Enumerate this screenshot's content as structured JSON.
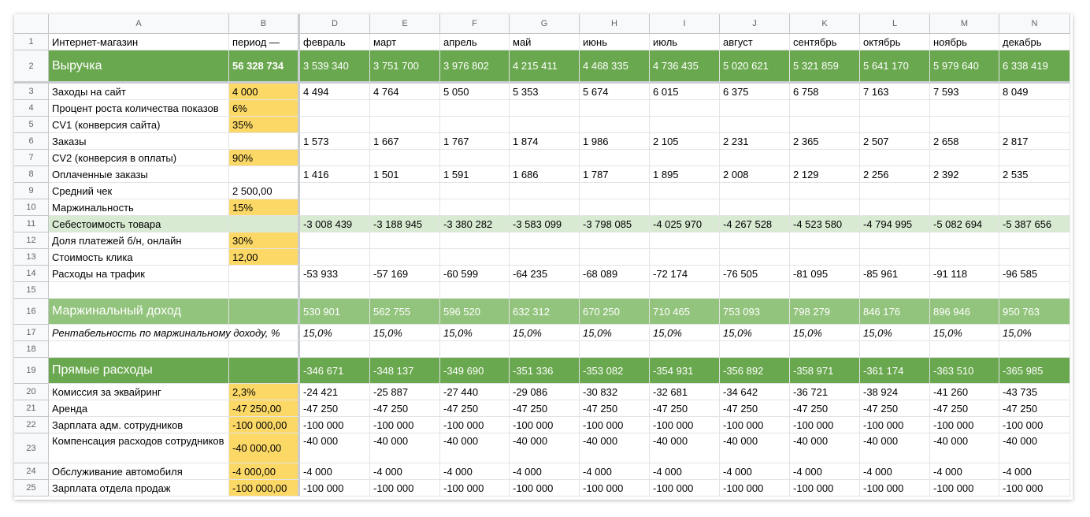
{
  "colors": {
    "yellow_input": "#fcd967",
    "green_dark": "#6aa84f",
    "green_mid": "#93c47d",
    "green_light": "#d9ead3"
  },
  "columns": [
    "A",
    "B",
    "D",
    "E",
    "F",
    "G",
    "H",
    "I",
    "J",
    "K",
    "L",
    "M",
    "N"
  ],
  "rows": [
    {
      "num": "1",
      "a": "Интернет-магазин",
      "b": "период —",
      "vals": [
        "февраль",
        "март",
        "апрель",
        "май",
        "июнь",
        "июль",
        "август",
        "сентябрь",
        "октябрь",
        "ноябрь",
        "декабрь"
      ]
    },
    {
      "num": "2",
      "a": "Выручка",
      "b": "56 328 734",
      "vals": [
        "3 539 340",
        "3 751 700",
        "3 976 802",
        "4 215 411",
        "4 468 335",
        "4 736 435",
        "5 020 621",
        "5 321 859",
        "5 641 170",
        "5 979 640",
        "6 338 419"
      ]
    },
    {
      "num": "3",
      "a": "Заходы на сайт",
      "b": "4 000",
      "vals": [
        "4 494",
        "4 764",
        "5 050",
        "5 353",
        "5 674",
        "6 015",
        "6 375",
        "6 758",
        "7 163",
        "7 593",
        "8 049"
      ]
    },
    {
      "num": "4",
      "a": "Процент роста количества показов",
      "b": "6%",
      "vals": [
        "",
        "",
        "",
        "",
        "",
        "",
        "",
        "",
        "",
        "",
        ""
      ]
    },
    {
      "num": "5",
      "a": "CV1 (конверсия сайта)",
      "b": "35%",
      "vals": [
        "",
        "",
        "",
        "",
        "",
        "",
        "",
        "",
        "",
        "",
        ""
      ]
    },
    {
      "num": "6",
      "a": "Заказы",
      "b": "",
      "vals": [
        "1 573",
        "1 667",
        "1 767",
        "1 874",
        "1 986",
        "2 105",
        "2 231",
        "2 365",
        "2 507",
        "2 658",
        "2 817"
      ]
    },
    {
      "num": "7",
      "a": "CV2 (конверсия в оплаты)",
      "b": "90%",
      "vals": [
        "",
        "",
        "",
        "",
        "",
        "",
        "",
        "",
        "",
        "",
        ""
      ]
    },
    {
      "num": "8",
      "a": "Оплаченные заказы",
      "b": "",
      "vals": [
        "1 416",
        "1 501",
        "1 591",
        "1 686",
        "1 787",
        "1 895",
        "2 008",
        "2 129",
        "2 256",
        "2 392",
        "2 535"
      ]
    },
    {
      "num": "9",
      "a": "Средний чек",
      "b": "2 500,00",
      "vals": [
        "",
        "",
        "",
        "",
        "",
        "",
        "",
        "",
        "",
        "",
        ""
      ]
    },
    {
      "num": "10",
      "a": "Маржинальность",
      "b": "15%",
      "vals": [
        "",
        "",
        "",
        "",
        "",
        "",
        "",
        "",
        "",
        "",
        ""
      ]
    },
    {
      "num": "11",
      "a": "Себестоимость товара",
      "b": "",
      "vals": [
        "-3 008 439",
        "-3 188 945",
        "-3 380 282",
        "-3 583 099",
        "-3 798 085",
        "-4 025 970",
        "-4 267 528",
        "-4 523 580",
        "-4 794 995",
        "-5 082 694",
        "-5 387 656"
      ]
    },
    {
      "num": "12",
      "a": "Доля платежей б/н, онлайн",
      "b": "30%",
      "vals": [
        "",
        "",
        "",
        "",
        "",
        "",
        "",
        "",
        "",
        "",
        ""
      ]
    },
    {
      "num": "13",
      "a": "Стоимость клика",
      "b": "12,00",
      "vals": [
        "",
        "",
        "",
        "",
        "",
        "",
        "",
        "",
        "",
        "",
        ""
      ]
    },
    {
      "num": "14",
      "a": "Расходы на трафик",
      "b": "",
      "vals": [
        "-53 933",
        "-57 169",
        "-60 599",
        "-64 235",
        "-68 089",
        "-72 174",
        "-76 505",
        "-81 095",
        "-85 961",
        "-91 118",
        "-96 585"
      ]
    },
    {
      "num": "15",
      "a": "",
      "b": "",
      "vals": [
        "",
        "",
        "",
        "",
        "",
        "",
        "",
        "",
        "",
        "",
        ""
      ]
    },
    {
      "num": "16",
      "a": "Маржинальный доход",
      "b": "",
      "vals": [
        "530 901",
        "562 755",
        "596 520",
        "632 312",
        "670 250",
        "710 465",
        "753 093",
        "798 279",
        "846 176",
        "896 946",
        "950 763"
      ]
    },
    {
      "num": "17",
      "a": "Рентабельность по маржинальному доходу, %",
      "b": "",
      "vals": [
        "15,0%",
        "15,0%",
        "15,0%",
        "15,0%",
        "15,0%",
        "15,0%",
        "15,0%",
        "15,0%",
        "15,0%",
        "15,0%",
        "15,0%"
      ]
    },
    {
      "num": "18",
      "a": "",
      "b": "",
      "vals": [
        "",
        "",
        "",
        "",
        "",
        "",
        "",
        "",
        "",
        "",
        ""
      ]
    },
    {
      "num": "19",
      "a": "Прямые расходы",
      "b": "",
      "vals": [
        "-346 671",
        "-348 137",
        "-349 690",
        "-351 336",
        "-353 082",
        "-354 931",
        "-356 892",
        "-358 971",
        "-361 174",
        "-363 510",
        "-365 985"
      ]
    },
    {
      "num": "20",
      "a": "Комиссия за эквайринг",
      "b": "2,3%",
      "vals": [
        "-24 421",
        "-25 887",
        "-27 440",
        "-29 086",
        "-30 832",
        "-32 681",
        "-34 642",
        "-36 721",
        "-38 924",
        "-41 260",
        "-43 735"
      ]
    },
    {
      "num": "21",
      "a": "Аренда",
      "b": "-47 250,00",
      "vals": [
        "-47 250",
        "-47 250",
        "-47 250",
        "-47 250",
        "-47 250",
        "-47 250",
        "-47 250",
        "-47 250",
        "-47 250",
        "-47 250",
        "-47 250"
      ]
    },
    {
      "num": "22",
      "a": "Зарплата адм. сотрудников",
      "b": "-100 000,00",
      "vals": [
        "-100 000",
        "-100 000",
        "-100 000",
        "-100 000",
        "-100 000",
        "-100 000",
        "-100 000",
        "-100 000",
        "-100 000",
        "-100 000",
        "-100 000"
      ]
    },
    {
      "num": "23",
      "a": "Компенсация расходов сотрудников",
      "b": "-40 000,00",
      "vals": [
        "-40 000",
        "-40 000",
        "-40 000",
        "-40 000",
        "-40 000",
        "-40 000",
        "-40 000",
        "-40 000",
        "-40 000",
        "-40 000",
        "-40 000"
      ]
    },
    {
      "num": "24",
      "a": "Обслуживание автомобиля",
      "b": "-4 000,00",
      "vals": [
        "-4 000",
        "-4 000",
        "-4 000",
        "-4 000",
        "-4 000",
        "-4 000",
        "-4 000",
        "-4 000",
        "-4 000",
        "-4 000",
        "-4 000"
      ]
    },
    {
      "num": "25",
      "a": "Зарплата отдела продаж",
      "b": "-100 000,00",
      "vals": [
        "-100 000",
        "-100 000",
        "-100 000",
        "-100 000",
        "-100 000",
        "-100 000",
        "-100 000",
        "-100 000",
        "-100 000",
        "-100 000",
        "-100 000"
      ]
    }
  ]
}
